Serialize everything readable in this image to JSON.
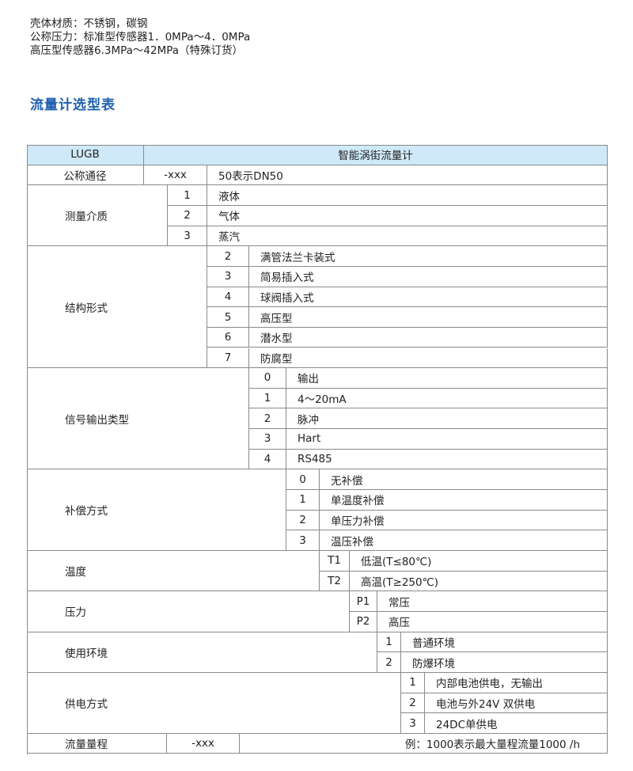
{
  "intro": {
    "line1": "壳体材质：不锈钢，碳钢",
    "line2": "公称压力：标准型传感器1．0MPa～4．0MPa",
    "line3": "高压型传感器6.3MPa～42MPa（特殊订货）"
  },
  "section_title": "流量计选型表",
  "colors": {
    "header_bg": "#cfe9f8",
    "title": "#1f5fae",
    "border": "#8a8a8a"
  },
  "table": {
    "header": {
      "model": "LUGB",
      "name": "智能涡街流量计"
    },
    "nominal_diameter": {
      "label": "公称通径",
      "code": "-xxx",
      "desc": "50表示DN50"
    },
    "groups": [
      {
        "label": "测量介质",
        "options": [
          {
            "code": "1",
            "text": "液体"
          },
          {
            "code": "2",
            "text": "气体"
          },
          {
            "code": "3",
            "text": "蒸汽"
          }
        ]
      },
      {
        "label": "结构形式",
        "options": [
          {
            "code": "2",
            "text": "满管法兰卡装式"
          },
          {
            "code": "3",
            "text": "简易插入式"
          },
          {
            "code": "4",
            "text": "球阀插入式"
          },
          {
            "code": "5",
            "text": "高压型"
          },
          {
            "code": "6",
            "text": "潜水型"
          },
          {
            "code": "7",
            "text": "防腐型"
          }
        ]
      },
      {
        "label": "信号输出类型",
        "options": [
          {
            "code": "0",
            "text": "输出"
          },
          {
            "code": "1",
            "text": "4～20mA"
          },
          {
            "code": "2",
            "text": "脉冲"
          },
          {
            "code": "3",
            "text": "Hart"
          },
          {
            "code": "4",
            "text": "RS485"
          }
        ]
      },
      {
        "label": "补偿方式",
        "options": [
          {
            "code": "0",
            "text": "无补偿"
          },
          {
            "code": "1",
            "text": "单温度补偿"
          },
          {
            "code": "2",
            "text": "单压力补偿"
          },
          {
            "code": "3",
            "text": "温压补偿"
          }
        ]
      },
      {
        "label": "温度",
        "options": [
          {
            "code": "T1",
            "text": "低温(T≤80℃)"
          },
          {
            "code": "T2",
            "text": "高温(T≥250℃)"
          }
        ]
      },
      {
        "label": "压力",
        "options": [
          {
            "code": "P1",
            "text": "常压"
          },
          {
            "code": "P2",
            "text": "高压"
          }
        ]
      },
      {
        "label": "使用环境",
        "options": [
          {
            "code": "1",
            "text": "普通环境"
          },
          {
            "code": "2",
            "text": "防爆环境"
          }
        ]
      },
      {
        "label": "供电方式",
        "options": [
          {
            "code": "1",
            "text": "内部电池供电，无输出"
          },
          {
            "code": "2",
            "text": "电池与外24V 双供电"
          },
          {
            "code": "3",
            "text": "24DC单供电"
          }
        ]
      }
    ],
    "flow_range": {
      "label": "流量量程",
      "code": "-xxx",
      "desc": "例：1000表示最大量程流量1000   /h"
    }
  }
}
